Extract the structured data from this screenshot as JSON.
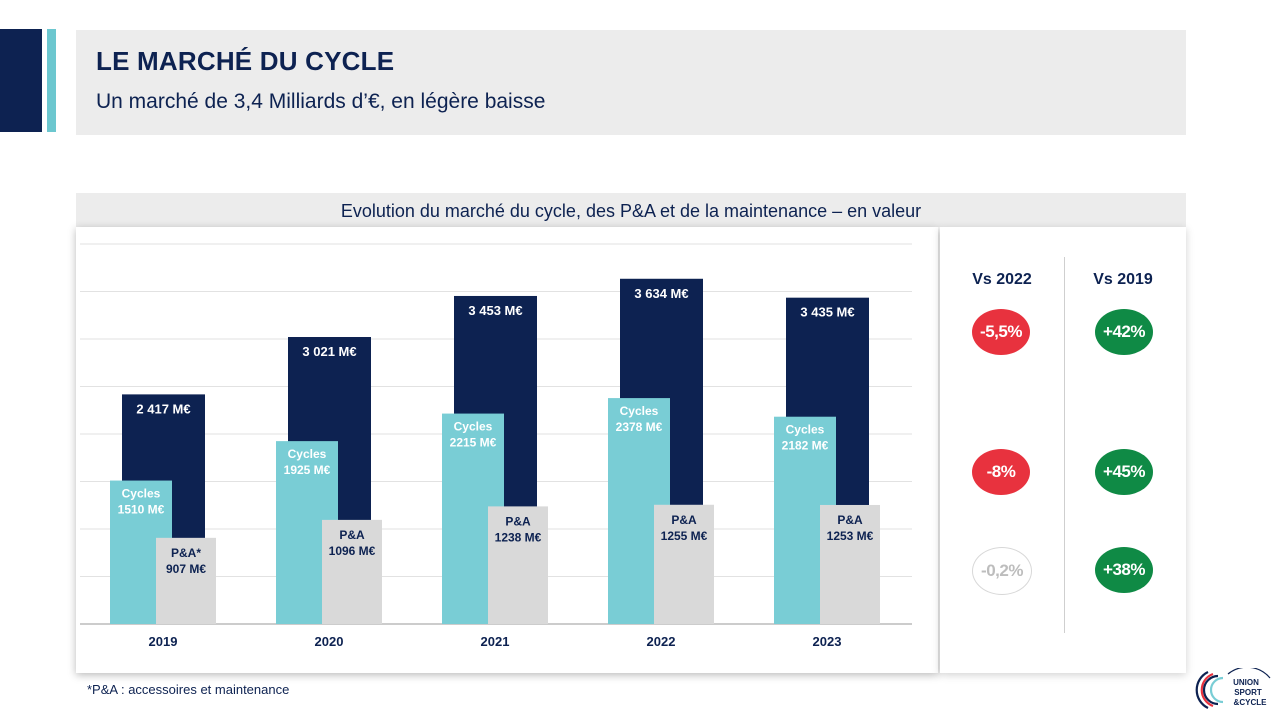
{
  "header": {
    "title": "LE MARCHÉ DU CYCLE",
    "subtitle": "Un marché de 3,4 Milliards d’€, en légère baisse"
  },
  "chart_data": {
    "type": "bar",
    "title": "Evolution du marché du cycle, des P&A et de la maintenance – en valeur",
    "categories": [
      "2019",
      "2020",
      "2021",
      "2022",
      "2023"
    ],
    "series": [
      {
        "name": "",
        "values": [
          2417,
          3021,
          3453,
          3634,
          3435
        ],
        "labels": [
          "2 417 M€",
          "3 021 M€",
          "3 453 M€",
          "3 634 M€",
          "3 435 M€"
        ],
        "color": "#0d2251"
      },
      {
        "name": "Cycles",
        "values": [
          1510,
          1925,
          2215,
          2378,
          2182
        ],
        "labels": [
          "1510 M€",
          "1925 M€",
          "2215 M€",
          "2378 M€",
          "2182 M€"
        ],
        "color": "#79cdd5"
      },
      {
        "name": "P&A",
        "values": [
          907,
          1096,
          1238,
          1255,
          1253
        ],
        "labels": [
          "907 M€",
          "1096 M€",
          "1238 M€",
          "1255 M€",
          "1253 M€"
        ],
        "label_names": [
          "P&A*",
          "P&A",
          "P&A",
          "P&A",
          "P&A"
        ],
        "color": "#d9d9d9"
      }
    ],
    "ylim": [
      0,
      4000
    ],
    "grid": true,
    "xlabel": "",
    "ylabel": ""
  },
  "comparison": {
    "headers": [
      "Vs 2022",
      "Vs 2019"
    ],
    "rows": [
      {
        "vs_2022": {
          "text": "-5,5%",
          "color": "#e8323e"
        },
        "vs_2019": {
          "text": "+42%",
          "color": "#0f8a45"
        }
      },
      {
        "vs_2022": {
          "text": "-8%",
          "color": "#e8323e"
        },
        "vs_2019": {
          "text": "+45%",
          "color": "#0f8a45"
        }
      },
      {
        "vs_2022": {
          "text": "-0,2%",
          "color": "#ffffff",
          "text_color": "#bdbdbd"
        },
        "vs_2019": {
          "text": "+38%",
          "color": "#0f8a45"
        }
      }
    ]
  },
  "footnote": "*P&A : accessoires et maintenance",
  "logo": {
    "lines": [
      "UNION",
      "SPORT",
      "&CYCLE"
    ]
  },
  "colors": {
    "navy": "#0d2251",
    "teal": "#79cdd5",
    "grey": "#d9d9d9",
    "red": "#e8323e",
    "green": "#0f8a45"
  }
}
